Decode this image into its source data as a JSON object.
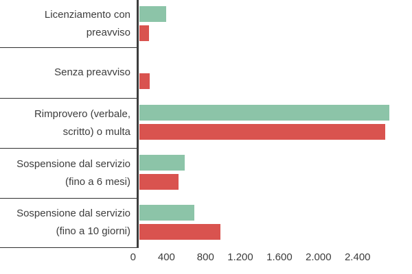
{
  "chart_data": {
    "type": "bar",
    "orientation": "horizontal",
    "title": "",
    "xlabel": "",
    "ylabel": "",
    "categories": [
      "Licenziamento con\npreavviso",
      "Senza preavviso",
      "Rimprovero (verbale,\nscritto) o multa",
      "Sospensione dal servizio\n(fino a 6 mesi)",
      "Sospensione dal servizio\n(fino a 10 giorni)"
    ],
    "series": [
      {
        "name": "green",
        "color": "#8cc4a8",
        "values": [
          280,
          0,
          2565,
          470,
          565
        ]
      },
      {
        "name": "red",
        "color": "#d9534f",
        "values": [
          105,
          110,
          2520,
          405,
          830
        ]
      }
    ],
    "x_ticks": [
      {
        "label": "0",
        "value": 0
      },
      {
        "label": "400",
        "value": 400
      },
      {
        "label": "800",
        "value": 800
      },
      {
        "label": "1.200",
        "value": 1200
      },
      {
        "label": "1.600",
        "value": 1600
      },
      {
        "label": "2.000",
        "value": 2000
      },
      {
        "label": "2.400",
        "value": 2400
      }
    ],
    "xlim": [
      0,
      2800
    ],
    "grid": false,
    "legend": "none"
  },
  "colors": {
    "background": "#ffffff",
    "axis_line": "#3d3d3d",
    "separator": "#2e2e2e",
    "text": "#3c3c3c",
    "bar_green": "#8cc4a8",
    "bar_red": "#d9534f"
  }
}
